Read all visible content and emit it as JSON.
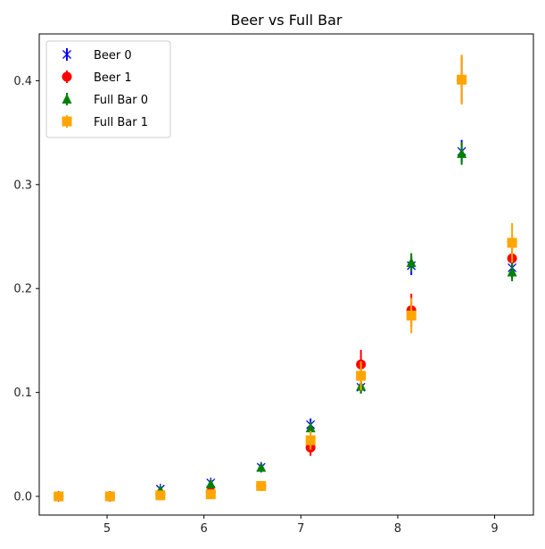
{
  "chart_data": {
    "type": "scatter",
    "title": "Beer vs Full Bar",
    "xlabel": "",
    "ylabel": "",
    "xlim": [
      4.3,
      9.4
    ],
    "ylim": [
      -0.018,
      0.445
    ],
    "x_ticks": [
      5,
      6,
      7,
      8,
      9
    ],
    "y_ticks": [
      0.0,
      0.1,
      0.2,
      0.3,
      0.4
    ],
    "y_tick_labels": [
      "0.0",
      "0.1",
      "0.2",
      "0.3",
      "0.4"
    ],
    "grid": false,
    "legend_position": "top-left",
    "series": [
      {
        "name": "Beer 0",
        "color": "#0000ff",
        "marker": "x-star",
        "x": [
          4.5,
          5.03,
          5.55,
          6.07,
          6.59,
          7.1,
          7.62,
          8.14,
          8.66,
          9.18
        ],
        "y": [
          0.0,
          0.0,
          0.007,
          0.013,
          0.028,
          0.069,
          0.105,
          0.222,
          0.332,
          0.22
        ],
        "err": [
          0.001,
          0.001,
          0.002,
          0.003,
          0.004,
          0.006,
          0.006,
          0.009,
          0.011,
          0.01
        ]
      },
      {
        "name": "Beer 1",
        "color": "#ff0000",
        "marker": "circle",
        "x": [
          4.5,
          5.03,
          5.55,
          6.07,
          6.59,
          7.1,
          7.62,
          8.14,
          8.66,
          9.18
        ],
        "y": [
          0.0,
          0.0,
          0.002,
          0.004,
          0.01,
          0.047,
          0.127,
          0.179,
          0.401,
          0.229
        ],
        "err": [
          0.001,
          0.001,
          0.002,
          0.003,
          0.004,
          0.008,
          0.014,
          0.016,
          0.022,
          0.018
        ]
      },
      {
        "name": "Full Bar 0",
        "color": "#008000",
        "marker": "triangle",
        "x": [
          4.5,
          5.03,
          5.55,
          6.07,
          6.59,
          7.1,
          7.62,
          8.14,
          8.66,
          9.18
        ],
        "y": [
          0.0,
          0.0,
          0.006,
          0.012,
          0.028,
          0.066,
          0.106,
          0.225,
          0.33,
          0.216
        ],
        "err": [
          0.001,
          0.001,
          0.002,
          0.003,
          0.004,
          0.006,
          0.007,
          0.009,
          0.011,
          0.009
        ]
      },
      {
        "name": "Full Bar 1",
        "color": "#ffa500",
        "marker": "square",
        "x": [
          4.5,
          5.03,
          5.55,
          6.07,
          6.59,
          7.1,
          7.62,
          8.14,
          8.66,
          9.18
        ],
        "y": [
          0.0,
          0.0,
          0.001,
          0.002,
          0.01,
          0.054,
          0.116,
          0.174,
          0.401,
          0.244
        ],
        "err": [
          0.001,
          0.001,
          0.002,
          0.003,
          0.004,
          0.009,
          0.014,
          0.017,
          0.024,
          0.019
        ]
      }
    ]
  }
}
